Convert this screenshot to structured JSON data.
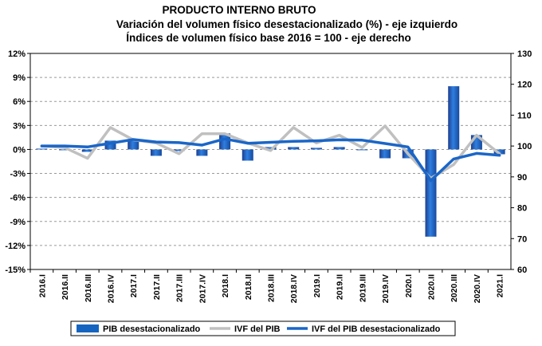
{
  "chart_data": {
    "type": "bar+line",
    "title": "PRODUCTO INTERNO BRUTO",
    "subtitle_1": "Variación del volumen físico desestacionalizado (%) - eje izquierdo",
    "subtitle_2": "Índices de volumen físico base 2016 = 100 - eje derecho",
    "categories": [
      "2016.I",
      "2016.II",
      "2016.III",
      "2016.IV",
      "2017.I",
      "2017.II",
      "2017.III",
      "2017.IV",
      "2018.I",
      "2018.II",
      "2018.III",
      "2018.IV",
      "2019.I",
      "2019.II",
      "2019.III",
      "2019.IV",
      "2020.I",
      "2020.II",
      "2020.III",
      "2020.IV",
      "2021.I"
    ],
    "left_axis": {
      "min": -15,
      "max": 12,
      "step": 3,
      "tick_labels": [
        "12%",
        "9%",
        "6%",
        "3%",
        "0%",
        "-3%",
        "-6%",
        "-9%",
        "-12%",
        "-15%"
      ]
    },
    "right_axis": {
      "min": 60,
      "max": 130,
      "step": 10,
      "tick_labels": [
        "130",
        "120",
        "110",
        "100",
        "90",
        "80",
        "70",
        "60"
      ]
    },
    "grid": true,
    "legend_position": "bottom",
    "series": [
      {
        "name": "PIB desestacionalizado",
        "type": "bar",
        "axis": "left",
        "color": "#1565c0",
        "values": [
          0.1,
          -0.1,
          -0.3,
          1.1,
          1.2,
          -0.8,
          -0.2,
          -0.8,
          2.0,
          -1.4,
          0.3,
          0.3,
          0.2,
          0.3,
          -0.1,
          -1.1,
          -1.1,
          -10.9,
          7.9,
          1.8,
          -0.6
        ]
      },
      {
        "name": "IVF del PIB",
        "type": "line",
        "axis": "right",
        "color": "#c0c0c0",
        "values": [
          100,
          99.5,
          96,
          106,
          102,
          101,
          97.5,
          104,
          104,
          101,
          98.5,
          106,
          101,
          103.5,
          99.5,
          106.5,
          97.5,
          89.5,
          94,
          103.5,
          97.5
        ]
      },
      {
        "name": "IVF del PIB desestacionalizado",
        "type": "line",
        "axis": "right",
        "color": "#1a66c8",
        "values": [
          100,
          100,
          99.7,
          100.9,
          102.1,
          101.3,
          101.1,
          100.3,
          102.3,
          100.9,
          101.2,
          101.5,
          101.7,
          102,
          101.9,
          100.8,
          99.7,
          88.8,
          95.8,
          97.6,
          97
        ]
      }
    ]
  }
}
